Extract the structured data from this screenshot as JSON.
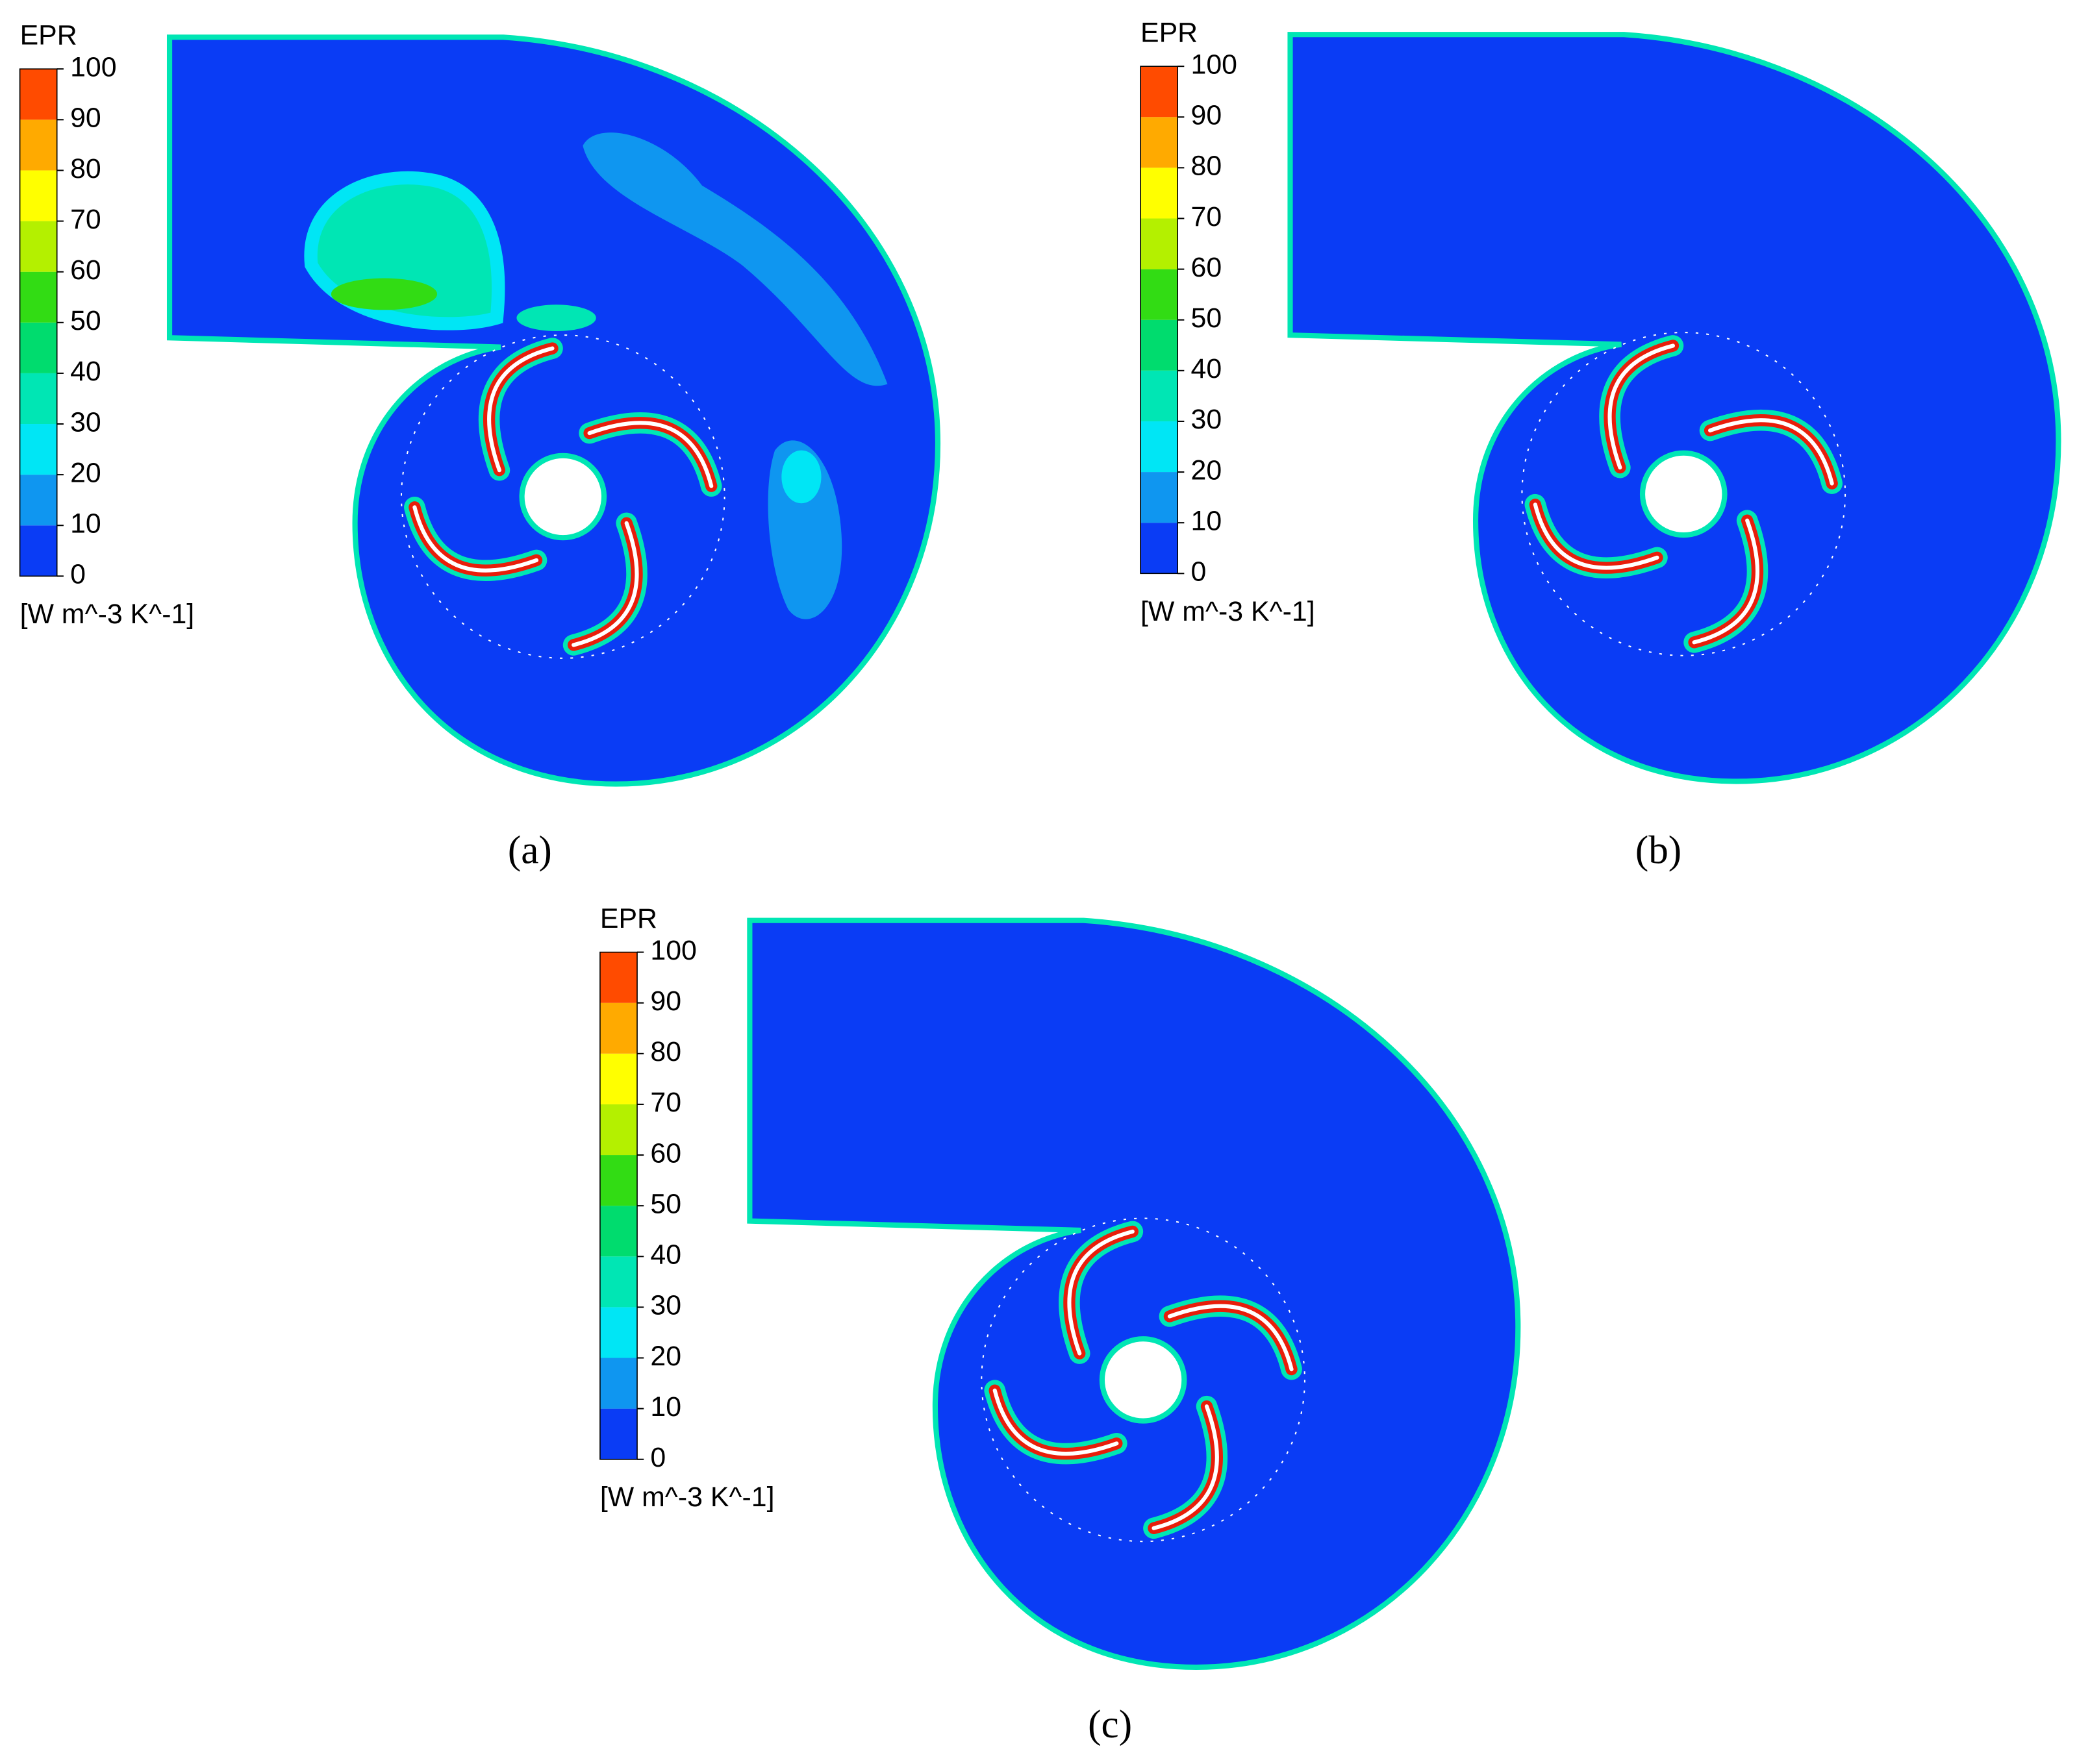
{
  "panels": [
    {
      "label": "(a)",
      "colorbar": {
        "title": "EPR",
        "unit": "[W m^-3 K^-1]",
        "ticks": [
          0,
          10,
          20,
          30,
          40,
          50,
          60,
          70,
          80,
          90,
          100
        ],
        "colors": [
          "#0a3cf5",
          "#0f96f0",
          "#00e6f5",
          "#00e6b4",
          "#00dc6e",
          "#32dc14",
          "#b4f000",
          "#ffff00",
          "#ffaa00",
          "#ff4b00"
        ]
      }
    },
    {
      "label": "(b)",
      "colorbar": {
        "title": "EPR",
        "unit": "[W m^-3 K^-1]",
        "ticks": [
          0,
          10,
          20,
          30,
          40,
          50,
          60,
          70,
          80,
          90,
          100
        ],
        "colors": [
          "#0a3cf5",
          "#0f96f0",
          "#00e6f5",
          "#00e6b4",
          "#00dc6e",
          "#32dc14",
          "#b4f000",
          "#ffff00",
          "#ffaa00",
          "#ff4b00"
        ]
      }
    },
    {
      "label": "(c)",
      "colorbar": {
        "title": "EPR",
        "unit": "[W m^-3 K^-1]",
        "ticks": [
          0,
          10,
          20,
          30,
          40,
          50,
          60,
          70,
          80,
          90,
          100
        ],
        "colors": [
          "#0a3cf5",
          "#0f96f0",
          "#00e6f5",
          "#00e6b4",
          "#00dc6e",
          "#32dc14",
          "#b4f000",
          "#ffff00",
          "#ffaa00",
          "#ff4b00"
        ]
      }
    }
  ]
}
